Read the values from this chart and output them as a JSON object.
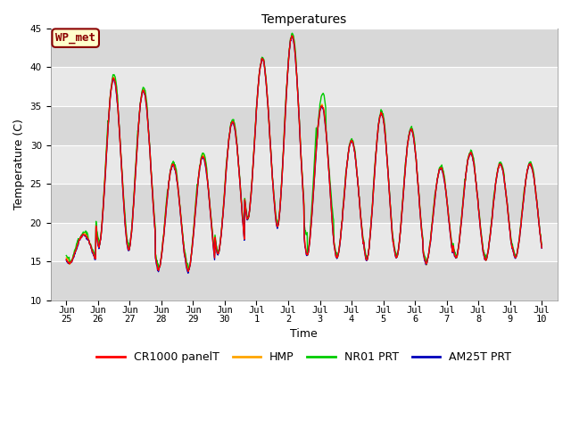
{
  "title": "Temperatures",
  "xlabel": "Time",
  "ylabel": "Temperature (C)",
  "ylim": [
    10,
    45
  ],
  "yticks": [
    10,
    15,
    20,
    25,
    30,
    35,
    40,
    45
  ],
  "bg_color": "#d8d8d8",
  "stripe_color": "#e8e8e8",
  "fig_color": "#ffffff",
  "annotation_text": "WP_met",
  "annotation_bg": "#ffffcc",
  "annotation_edge": "#8b0000",
  "annotation_text_color": "#8b0000",
  "series_colors": {
    "CR1000 panelT": "#ff0000",
    "HMP": "#ffa500",
    "NR01 PRT": "#00cc00",
    "AM25T PRT": "#0000bb"
  },
  "xtick_labels": [
    "Jun\n25",
    "Jun\n26",
    "Jun\n27",
    "Jun\n28",
    "Jun\n29",
    "Jun\n30",
    "Jul\n1",
    "Jul\n2",
    "Jul\n3",
    "Jul\n4",
    "Jul\n5",
    "Jul\n6",
    "Jul\n7",
    "Jul\n8",
    "Jul\n9",
    "Jul\n10"
  ],
  "xlim": [
    -0.5,
    15.5
  ],
  "line_width": 1.0,
  "font_size_title": 10,
  "font_size_axis": 9,
  "font_size_tick": 7.5,
  "font_size_legend": 9,
  "font_size_annotation": 9,
  "grid_color": "#ffffff",
  "day_data": {
    "peaks": [
      18.5,
      38.5,
      37.0,
      27.5,
      28.5,
      33.0,
      41.0,
      44.0,
      35.0,
      30.5,
      34.0,
      32.0,
      27.0,
      29.0,
      27.5,
      27.5
    ],
    "troughs": [
      14.8,
      17.0,
      16.5,
      14.0,
      13.8,
      16.0,
      20.5,
      19.5,
      15.8,
      15.5,
      15.2,
      15.5,
      14.8,
      15.5,
      15.2,
      15.5
    ],
    "offsets_HMP": [
      0.5,
      0.5,
      0.3,
      0.5,
      0.5,
      0.3,
      0.2,
      0.3,
      0.3,
      0.2,
      0.2,
      0.2,
      0.3,
      0.2,
      0.2,
      0.2
    ],
    "offsets_NR01": [
      0.8,
      1.2,
      1.0,
      0.8,
      1.0,
      0.6,
      0.4,
      0.8,
      3.5,
      0.5,
      0.7,
      0.6,
      0.6,
      0.6,
      0.6,
      0.5
    ],
    "offsets_AM25": [
      -0.2,
      -0.3,
      -0.2,
      -0.2,
      -0.3,
      -0.2,
      -0.1,
      -0.2,
      -0.2,
      -0.1,
      -0.1,
      -0.1,
      -0.2,
      -0.1,
      -0.1,
      -0.1
    ]
  }
}
